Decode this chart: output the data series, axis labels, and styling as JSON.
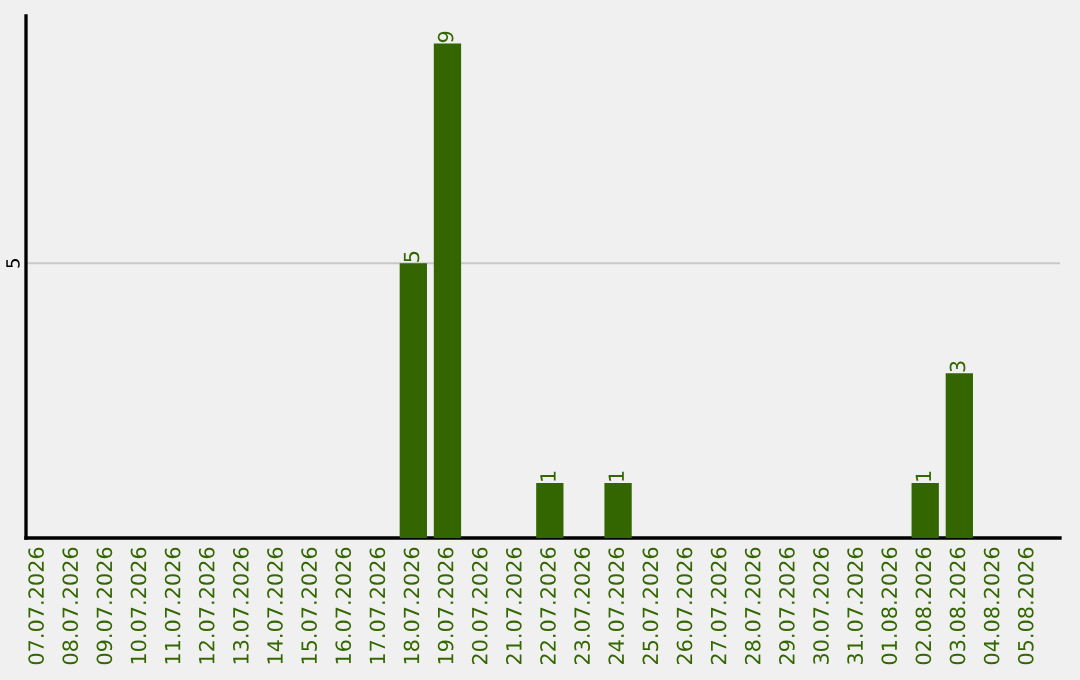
{
  "chart_data": {
    "type": "bar",
    "categories": [
      "07.07.2026",
      "08.07.2026",
      "09.07.2026",
      "10.07.2026",
      "11.07.2026",
      "12.07.2026",
      "13.07.2026",
      "14.07.2026",
      "15.07.2026",
      "16.07.2026",
      "17.07.2026",
      "18.07.2026",
      "19.07.2026",
      "20.07.2026",
      "21.07.2026",
      "22.07.2026",
      "23.07.2026",
      "24.07.2026",
      "25.07.2026",
      "26.07.2026",
      "27.07.2026",
      "28.07.2026",
      "29.07.2026",
      "30.07.2026",
      "31.07.2026",
      "01.08.2026",
      "02.08.2026",
      "03.08.2026",
      "04.08.2026",
      "05.08.2026"
    ],
    "values": [
      0,
      0,
      0,
      0,
      0,
      0,
      0,
      0,
      0,
      0,
      0,
      5,
      9,
      0,
      0,
      1,
      0,
      1,
      0,
      0,
      0,
      0,
      0,
      0,
      0,
      0,
      1,
      3,
      0,
      0
    ],
    "value_labels": [
      null,
      null,
      null,
      null,
      null,
      null,
      null,
      null,
      null,
      null,
      null,
      "5",
      "9",
      null,
      null,
      "1",
      null,
      "1",
      null,
      null,
      null,
      null,
      null,
      null,
      null,
      null,
      "1",
      "3",
      null,
      null
    ],
    "color": "#336600",
    "ylim": [
      0,
      9.5
    ],
    "yticks": [
      5
    ],
    "grid": "y"
  }
}
